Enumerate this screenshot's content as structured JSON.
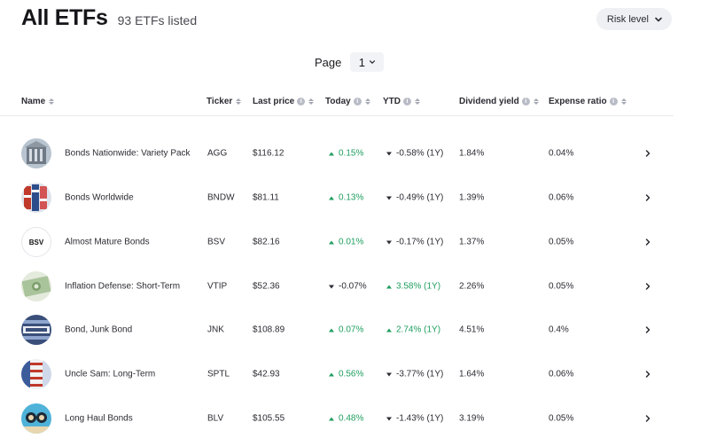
{
  "header": {
    "title": "All ETFs",
    "count": "93 ETFs listed"
  },
  "risk_filter": {
    "label": "Risk level",
    "icon": "chevron-down-icon"
  },
  "pagination": {
    "label": "Page",
    "current": "1"
  },
  "columns": {
    "name": "Name",
    "ticker": "Ticker",
    "last_price": "Last price",
    "today": "Today",
    "ytd": "YTD",
    "dividend_yield": "Dividend yield",
    "expense_ratio": "Expense ratio"
  },
  "colors": {
    "positive": "#1f9e5f",
    "negative": "#2b2b33",
    "badge_bg": "#eef0f4"
  },
  "rows": [
    {
      "name": "Bonds Nationwide: Variety Pack",
      "ticker": "AGG",
      "price": "$116.12",
      "today": "0.15%",
      "today_dir": "up",
      "ytd": "-0.58% (1Y)",
      "ytd_dir": "down",
      "dividend": "1.84%",
      "expense": "0.04%",
      "avatar": "building-photo"
    },
    {
      "name": "Bonds Worldwide",
      "ticker": "BNDW",
      "price": "$81.11",
      "today": "0.13%",
      "today_dir": "up",
      "ytd": "-0.49% (1Y)",
      "ytd_dir": "down",
      "dividend": "1.39%",
      "expense": "0.06%",
      "avatar": "flags-photo"
    },
    {
      "name": "Almost Mature Bonds",
      "ticker": "BSV",
      "price": "$82.16",
      "today": "0.01%",
      "today_dir": "up",
      "ytd": "-0.17% (1Y)",
      "ytd_dir": "down",
      "dividend": "1.37%",
      "expense": "0.05%",
      "avatar_text": "BSV"
    },
    {
      "name": "Inflation Defense: Short-Term",
      "ticker": "VTIP",
      "price": "$52.36",
      "today": "-0.07%",
      "today_dir": "down",
      "ytd": "3.58% (1Y)",
      "ytd_dir": "up",
      "dividend": "2.26%",
      "expense": "0.05%",
      "avatar": "money-photo"
    },
    {
      "name": "Bond, Junk Bond",
      "ticker": "JNK",
      "price": "$108.89",
      "today": "0.07%",
      "today_dir": "up",
      "ytd": "2.74% (1Y)",
      "ytd_dir": "up",
      "dividend": "4.51%",
      "expense": "0.4%",
      "avatar": "shares-photo"
    },
    {
      "name": "Uncle Sam: Long-Term",
      "ticker": "SPTL",
      "price": "$42.93",
      "today": "0.56%",
      "today_dir": "up",
      "ytd": "-3.77% (1Y)",
      "ytd_dir": "down",
      "dividend": "1.64%",
      "expense": "0.06%",
      "avatar": "uncle-sam-photo"
    },
    {
      "name": "Long Haul Bonds",
      "ticker": "BLV",
      "price": "$105.55",
      "today": "0.48%",
      "today_dir": "up",
      "ytd": "-1.43% (1Y)",
      "ytd_dir": "down",
      "dividend": "3.19%",
      "expense": "0.05%",
      "avatar": "road-photo"
    }
  ]
}
